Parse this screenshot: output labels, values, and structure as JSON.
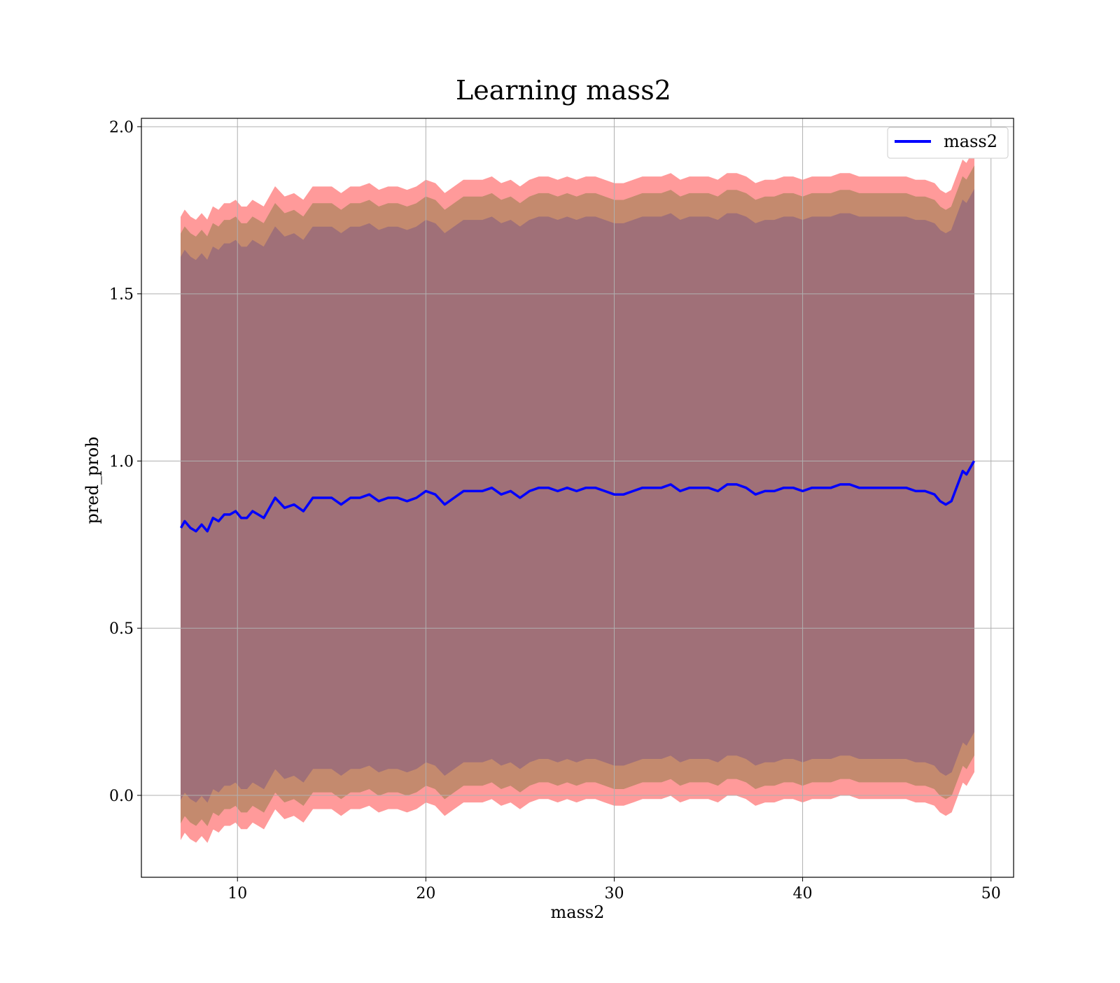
{
  "chart_data": {
    "type": "line",
    "title": "Learning mass2",
    "xlabel": "mass2",
    "ylabel": "pred_prob",
    "xlim": [
      4.9,
      51.2
    ],
    "ylim": [
      -0.245,
      2.025
    ],
    "xticks": [
      10,
      20,
      30,
      40,
      50
    ],
    "yticks": [
      0.0,
      0.5,
      1.0,
      1.5,
      2.0
    ],
    "xtick_labels": [
      "10",
      "20",
      "30",
      "40",
      "50"
    ],
    "ytick_labels": [
      "0.0",
      "0.5",
      "1.0",
      "1.5",
      "2.0"
    ],
    "grid": true,
    "legend_position": "top-right",
    "series": [
      {
        "name": "mass2",
        "color": "#0000ff",
        "x": [
          7.0,
          7.2,
          7.5,
          7.8,
          8.1,
          8.4,
          8.7,
          9.0,
          9.3,
          9.6,
          9.9,
          10.2,
          10.5,
          10.8,
          11.1,
          11.4,
          11.7,
          12.0,
          12.5,
          13.0,
          13.5,
          14.0,
          14.5,
          15.0,
          15.5,
          16.0,
          16.5,
          17.0,
          17.5,
          18.0,
          18.5,
          19.0,
          19.5,
          20.0,
          20.5,
          21.0,
          21.5,
          22.0,
          22.5,
          23.0,
          23.5,
          24.0,
          24.5,
          25.0,
          25.5,
          26.0,
          26.5,
          27.0,
          27.5,
          28.0,
          28.5,
          29.0,
          29.5,
          30.0,
          30.5,
          31.0,
          31.5,
          32.0,
          32.5,
          33.0,
          33.5,
          34.0,
          34.5,
          35.0,
          35.5,
          36.0,
          36.5,
          37.0,
          37.5,
          38.0,
          38.5,
          39.0,
          39.5,
          40.0,
          40.5,
          41.0,
          41.5,
          42.0,
          42.5,
          43.0,
          43.5,
          44.0,
          44.5,
          45.0,
          45.5,
          46.0,
          46.5,
          47.0,
          47.3,
          47.6,
          47.9,
          48.1,
          48.3,
          48.5,
          48.7,
          48.9,
          49.1
        ],
        "y": [
          0.8,
          0.82,
          0.8,
          0.79,
          0.81,
          0.79,
          0.83,
          0.82,
          0.84,
          0.84,
          0.85,
          0.83,
          0.83,
          0.85,
          0.84,
          0.83,
          0.86,
          0.89,
          0.86,
          0.87,
          0.85,
          0.89,
          0.89,
          0.89,
          0.87,
          0.89,
          0.89,
          0.9,
          0.88,
          0.89,
          0.89,
          0.88,
          0.89,
          0.91,
          0.9,
          0.87,
          0.89,
          0.91,
          0.91,
          0.91,
          0.92,
          0.9,
          0.91,
          0.89,
          0.91,
          0.92,
          0.92,
          0.91,
          0.92,
          0.91,
          0.92,
          0.92,
          0.91,
          0.9,
          0.9,
          0.91,
          0.92,
          0.92,
          0.92,
          0.93,
          0.91,
          0.92,
          0.92,
          0.92,
          0.91,
          0.93,
          0.93,
          0.92,
          0.9,
          0.91,
          0.91,
          0.92,
          0.92,
          0.91,
          0.92,
          0.92,
          0.92,
          0.93,
          0.93,
          0.92,
          0.92,
          0.92,
          0.92,
          0.92,
          0.92,
          0.91,
          0.91,
          0.9,
          0.88,
          0.87,
          0.88,
          0.91,
          0.94,
          0.97,
          0.96,
          0.98,
          1.0
        ]
      }
    ],
    "bands": [
      {
        "label": "outer",
        "color": "#ff9a9a",
        "half_width": 0.93
      },
      {
        "label": "middle",
        "color": "#c48a6e",
        "half_width": 0.88
      },
      {
        "label": "inner",
        "color": "#a07078",
        "half_width": 0.81
      }
    ]
  }
}
